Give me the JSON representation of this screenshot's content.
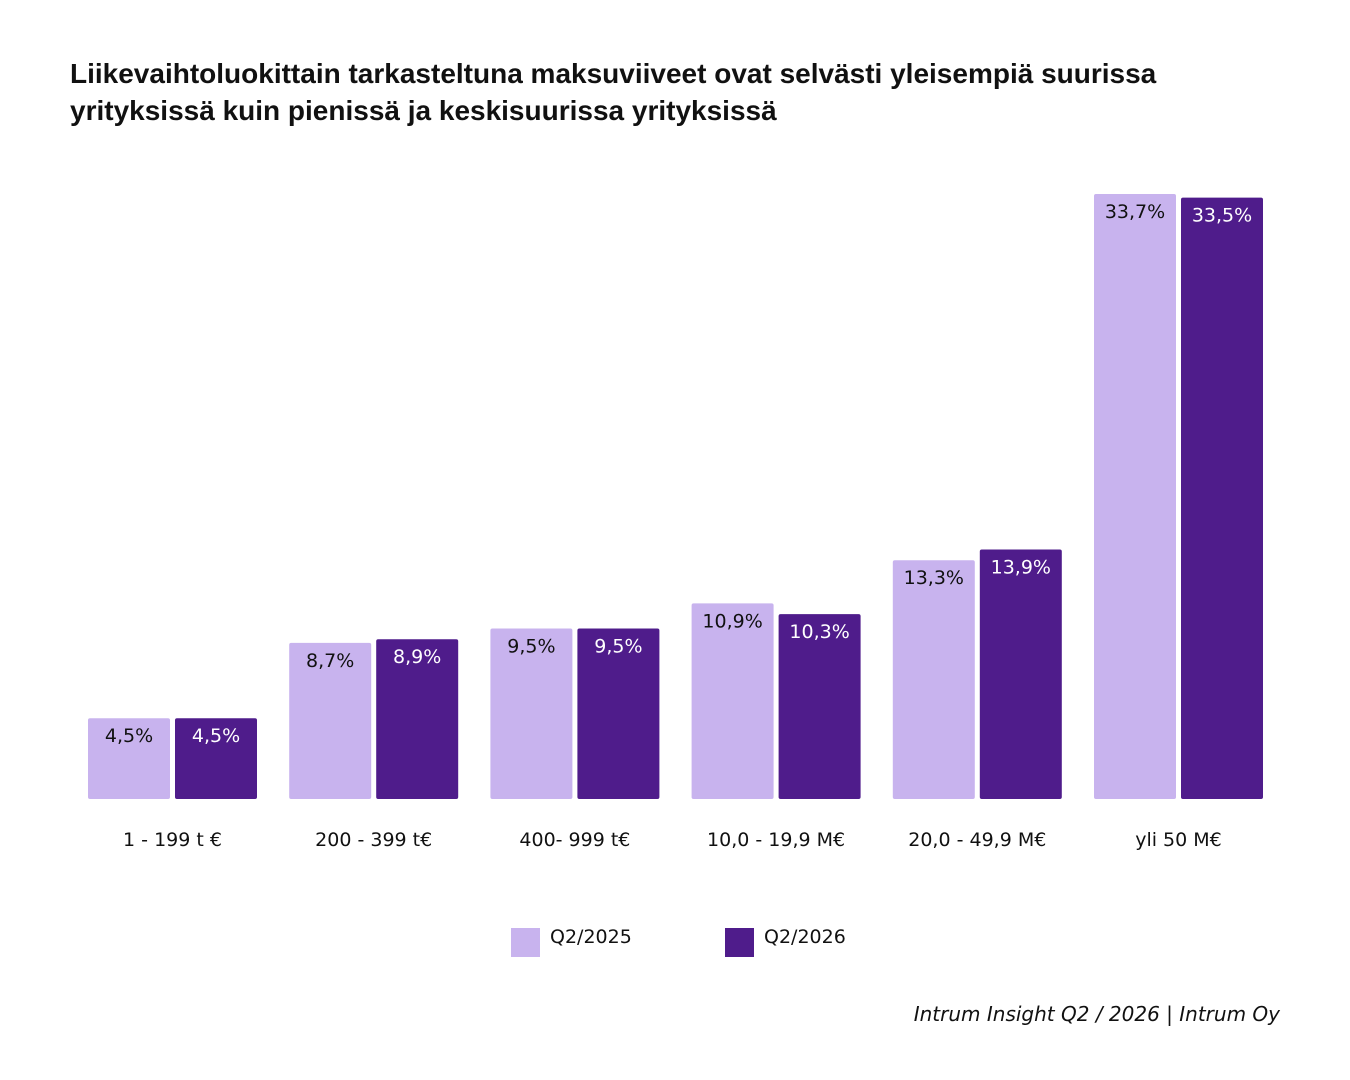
{
  "title": "Liikevaihtoluokittain tarkasteltuna maksuviiveet ovat selvästi yleisempiä suurissa yrityksissä kuin pienissä ja keskisuurissa yrityksissä",
  "source": "Intrum Insight Q2 / 2026 | Intrum Oy",
  "colors": {
    "light": "#c8b3ee",
    "dark": "#4f1c8b",
    "light_label": "#111111",
    "dark_label": "#ffffff"
  },
  "chart_data": {
    "type": "bar",
    "title": "Liikevaihtoluokittain tarkasteltuna maksuviiveet ovat selvästi yleisempiä suurissa yrityksissä kuin pienissä ja keskisuurissa yrityksissä",
    "categories": [
      "1 - 199 t €",
      "200 - 399 t€",
      "400- 999 t€",
      "10,0 - 19,9 M€",
      "20,0 - 49,9 M€",
      "yli 50 M€"
    ],
    "series": [
      {
        "name": "Q2/2025",
        "values": [
          4.5,
          8.7,
          9.5,
          10.9,
          13.3,
          33.7
        ],
        "labels": [
          "4,5%",
          "8,7%",
          "9,5%",
          "10,9%",
          "13,3%",
          "33,7%"
        ],
        "color": "#c8b3ee"
      },
      {
        "name": "Q2/2026",
        "values": [
          4.5,
          8.9,
          9.5,
          10.3,
          13.9,
          33.5
        ],
        "labels": [
          "4,5%",
          "8,9%",
          "9,5%",
          "10,3%",
          "13,9%",
          "33,5%"
        ],
        "color": "#4f1c8b"
      }
    ],
    "xlabel": "",
    "ylabel": "",
    "ylim": [
      0,
      33.7
    ],
    "grid": false,
    "legend": "bottom-center"
  }
}
